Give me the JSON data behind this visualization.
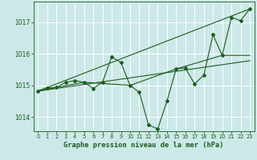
{
  "title": "Graphe pression niveau de la mer (hPa)",
  "bg_color": "#cce8e8",
  "grid_color": "#aadddd",
  "line_color": "#1a5c1a",
  "x_ticks": [
    0,
    1,
    2,
    3,
    4,
    5,
    6,
    7,
    8,
    9,
    10,
    11,
    12,
    13,
    14,
    15,
    16,
    17,
    18,
    19,
    20,
    21,
    22,
    23
  ],
  "y_ticks": [
    1014,
    1015,
    1016,
    1017
  ],
  "ylim": [
    1013.55,
    1017.65
  ],
  "xlim": [
    -0.5,
    23.5
  ],
  "main_series_x": [
    0,
    1,
    2,
    3,
    4,
    5,
    6,
    7,
    8,
    9,
    10,
    11,
    12,
    13,
    14,
    15,
    16,
    17,
    18,
    19,
    20,
    21,
    22,
    23
  ],
  "main_series_y": [
    1014.82,
    1014.92,
    1014.93,
    1015.1,
    1015.15,
    1015.1,
    1014.9,
    1015.1,
    1015.9,
    1015.72,
    1015.0,
    1014.78,
    1013.75,
    1013.62,
    1014.5,
    1015.52,
    1015.55,
    1015.05,
    1015.32,
    1016.6,
    1015.95,
    1017.15,
    1017.05,
    1017.42
  ],
  "upper_line": [
    [
      0,
      1014.82
    ],
    [
      23,
      1017.42
    ]
  ],
  "middle_line": [
    [
      0,
      1014.82
    ],
    [
      23,
      1015.78
    ]
  ],
  "lower_line": [
    [
      0,
      1014.82
    ],
    [
      5,
      1015.1
    ],
    [
      10,
      1015.0
    ],
    [
      15,
      1015.52
    ],
    [
      20,
      1015.95
    ],
    [
      23,
      1015.95
    ]
  ]
}
